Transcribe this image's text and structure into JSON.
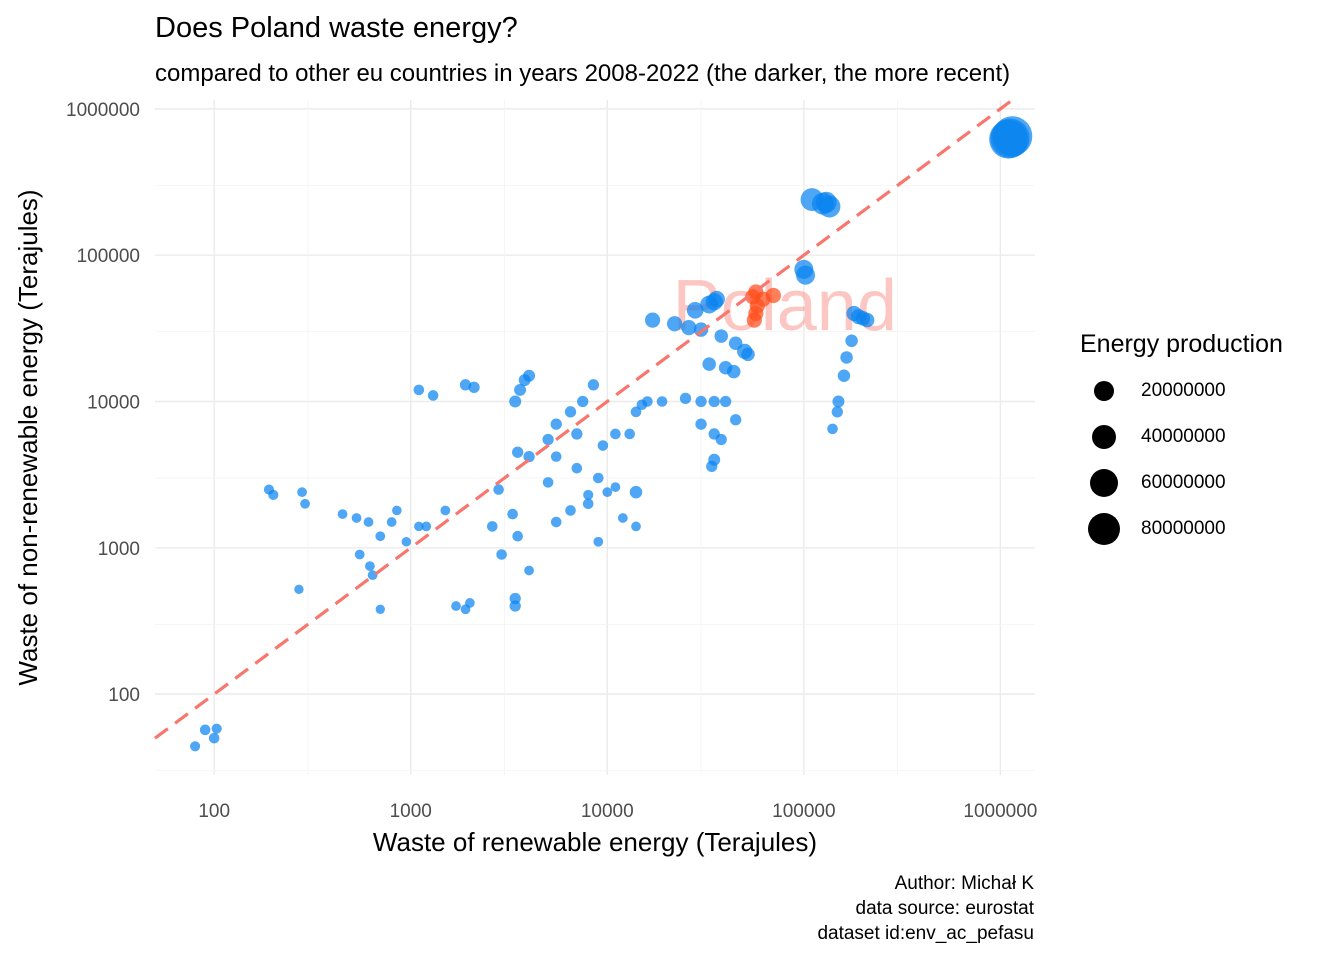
{
  "title": "Does Poland waste energy?",
  "subtitle": "compared to other eu countries in years 2008-2022 (the darker, the more recent)",
  "caption": [
    "Author: Michał K",
    "data source: eurostat",
    "dataset id:env_ac_pefasu"
  ],
  "chart_data": {
    "type": "scatter",
    "title": "Does Poland waste energy?",
    "subtitle": "compared to other eu countries in years 2008-2022 (the darker, the more recent)",
    "xlabel": "Waste of renewable energy (Terajules)",
    "ylabel": "Waste of non-renewable energy (Terajules)",
    "x_scale": "log10",
    "y_scale": "log10",
    "xlim": [
      50,
      1500000
    ],
    "ylim": [
      28,
      1150000
    ],
    "x_ticks": [
      100,
      1000,
      10000,
      100000,
      1000000
    ],
    "x_tick_labels": [
      "100",
      "1000",
      "10000",
      "100000",
      "1000000"
    ],
    "y_ticks": [
      100,
      1000,
      10000,
      100000,
      1000000
    ],
    "y_tick_labels": [
      "100",
      "1000",
      "10000",
      "100000",
      "1000000"
    ],
    "grid": true,
    "reference_line": {
      "style": "dashed",
      "color": "#F8766D",
      "description": "y = x"
    },
    "annotation": {
      "text": "Poland",
      "x": 80000,
      "y": 45000,
      "color": "#F8766D"
    },
    "highlight_color": "#FF4E1A",
    "point_color": "#0A84F0",
    "legend": {
      "title": "Energy production",
      "position": "right",
      "size_values": [
        20000000,
        40000000,
        60000000,
        80000000
      ],
      "labels": [
        "20000000",
        "40000000",
        "60000000",
        "80000000"
      ]
    },
    "series": [
      {
        "highlight": true,
        "points": [
          [
            55000,
            52000,
            6000000
          ],
          [
            57000,
            56000,
            6000000
          ],
          [
            62000,
            50000,
            6000000
          ],
          [
            70000,
            53000,
            6000000
          ],
          [
            58000,
            45000,
            6000000
          ],
          [
            57000,
            40000,
            6000000
          ],
          [
            56000,
            36000,
            6000000
          ]
        ]
      },
      {
        "highlight": false,
        "points": [
          [
            1150000,
            650000,
            82000000
          ],
          [
            1120000,
            630000,
            78000000
          ],
          [
            1100000,
            620000,
            76000000
          ],
          [
            110000,
            240000,
            20000000
          ],
          [
            125000,
            225000,
            18000000
          ],
          [
            135000,
            215000,
            18000000
          ],
          [
            130000,
            230000,
            16000000
          ],
          [
            100000,
            80000,
            12000000
          ],
          [
            102000,
            73000,
            12000000
          ],
          [
            33000,
            46000,
            10000000
          ],
          [
            35000,
            48000,
            9000000
          ],
          [
            36000,
            50000,
            8000000
          ],
          [
            28000,
            42000,
            8000000
          ],
          [
            17000,
            36000,
            6000000
          ],
          [
            22000,
            34000,
            6000000
          ],
          [
            26000,
            32000,
            6000000
          ],
          [
            30000,
            31000,
            5000000
          ],
          [
            38000,
            28000,
            4000000
          ],
          [
            45000,
            25000,
            4000000
          ],
          [
            50000,
            22000,
            6000000
          ],
          [
            52000,
            21000,
            4000000
          ],
          [
            33000,
            18000,
            4000000
          ],
          [
            40000,
            17000,
            4000000
          ],
          [
            44000,
            16000,
            4000000
          ],
          [
            180000,
            40000,
            6000000
          ],
          [
            190000,
            38000,
            6000000
          ],
          [
            200000,
            37000,
            5000000
          ],
          [
            210000,
            36000,
            5000000
          ],
          [
            175000,
            26000,
            3000000
          ],
          [
            165000,
            20000,
            3000000
          ],
          [
            160000,
            15000,
            3000000
          ],
          [
            150000,
            10000,
            2500000
          ],
          [
            148000,
            8500,
            2000000
          ],
          [
            140000,
            6500,
            1500000
          ],
          [
            25000,
            10500,
            2000000
          ],
          [
            30000,
            10000,
            2000000
          ],
          [
            35000,
            10000,
            2000000
          ],
          [
            40000,
            10000,
            2000000
          ],
          [
            30000,
            7000,
            2000000
          ],
          [
            35000,
            6000,
            2000000
          ],
          [
            38000,
            5500,
            2000000
          ],
          [
            45000,
            7500,
            2000000
          ],
          [
            35000,
            4000,
            2500000
          ],
          [
            34000,
            3600,
            2000000
          ],
          [
            14000,
            2400,
            3000000
          ],
          [
            3800,
            14000,
            2500000
          ],
          [
            4000,
            15000,
            2500000
          ],
          [
            3600,
            12000,
            2500000
          ],
          [
            3400,
            10000,
            2500000
          ],
          [
            1900,
            13000,
            2000000
          ],
          [
            2100,
            12500,
            2000000
          ],
          [
            1100,
            12000,
            1500000
          ],
          [
            1300,
            11000,
            1500000
          ],
          [
            8500,
            13000,
            2000000
          ],
          [
            7500,
            10000,
            2000000
          ],
          [
            6500,
            8500,
            2000000
          ],
          [
            5500,
            7000,
            2000000
          ],
          [
            7000,
            6000,
            2000000
          ],
          [
            5000,
            5500,
            2000000
          ],
          [
            9500,
            5000,
            1500000
          ],
          [
            3500,
            4500,
            2000000
          ],
          [
            4000,
            4200,
            2000000
          ],
          [
            5500,
            4200,
            1500000
          ],
          [
            7000,
            3500,
            1500000
          ],
          [
            9000,
            3000,
            1500000
          ],
          [
            5000,
            2800,
            1500000
          ],
          [
            11000,
            6000,
            1500000
          ],
          [
            13000,
            6000,
            1500000
          ],
          [
            14000,
            8500,
            1500000
          ],
          [
            15000,
            9500,
            1500000
          ],
          [
            16000,
            10000,
            1500000
          ],
          [
            19000,
            10000,
            1500000
          ],
          [
            2800,
            2500,
            1500000
          ],
          [
            3300,
            1700,
            1500000
          ],
          [
            2600,
            1400,
            1500000
          ],
          [
            3500,
            1200,
            1500000
          ],
          [
            5500,
            1500,
            1500000
          ],
          [
            6500,
            1800,
            1500000
          ],
          [
            8000,
            2000,
            1500000
          ],
          [
            2900,
            900,
            1500000
          ],
          [
            3400,
            450,
            2000000
          ],
          [
            3400,
            400,
            2000000
          ],
          [
            4000,
            700,
            1000000
          ],
          [
            1700,
            400,
            1000000
          ],
          [
            1900,
            380,
            1000000
          ],
          [
            2000,
            420,
            1000000
          ],
          [
            190,
            2500,
            1200000
          ],
          [
            200,
            2300,
            1200000
          ],
          [
            280,
            2400,
            1000000
          ],
          [
            290,
            2000,
            1000000
          ],
          [
            450,
            1700,
            1000000
          ],
          [
            530,
            1600,
            1000000
          ],
          [
            610,
            1500,
            1000000
          ],
          [
            800,
            1500,
            1000000
          ],
          [
            700,
            1200,
            1000000
          ],
          [
            550,
            900,
            1000000
          ],
          [
            620,
            750,
            1000000
          ],
          [
            640,
            650,
            1000000
          ],
          [
            270,
            520,
            800000
          ],
          [
            700,
            380,
            800000
          ],
          [
            1200,
            1400,
            1000000
          ],
          [
            1500,
            1800,
            1000000
          ],
          [
            1100,
            1400,
            900000
          ],
          [
            850,
            1800,
            900000
          ],
          [
            950,
            1100,
            900000
          ],
          [
            8000,
            2300,
            1200000
          ],
          [
            10000,
            2400,
            1000000
          ],
          [
            11000,
            2600,
            1000000
          ],
          [
            12000,
            1600,
            1000000
          ],
          [
            14000,
            1400,
            1000000
          ],
          [
            9000,
            1100,
            1000000
          ],
          [
            90,
            57,
            1500000
          ],
          [
            100,
            50,
            1500000
          ],
          [
            103,
            58,
            1200000
          ],
          [
            80,
            44,
            1200000
          ]
        ]
      }
    ]
  }
}
